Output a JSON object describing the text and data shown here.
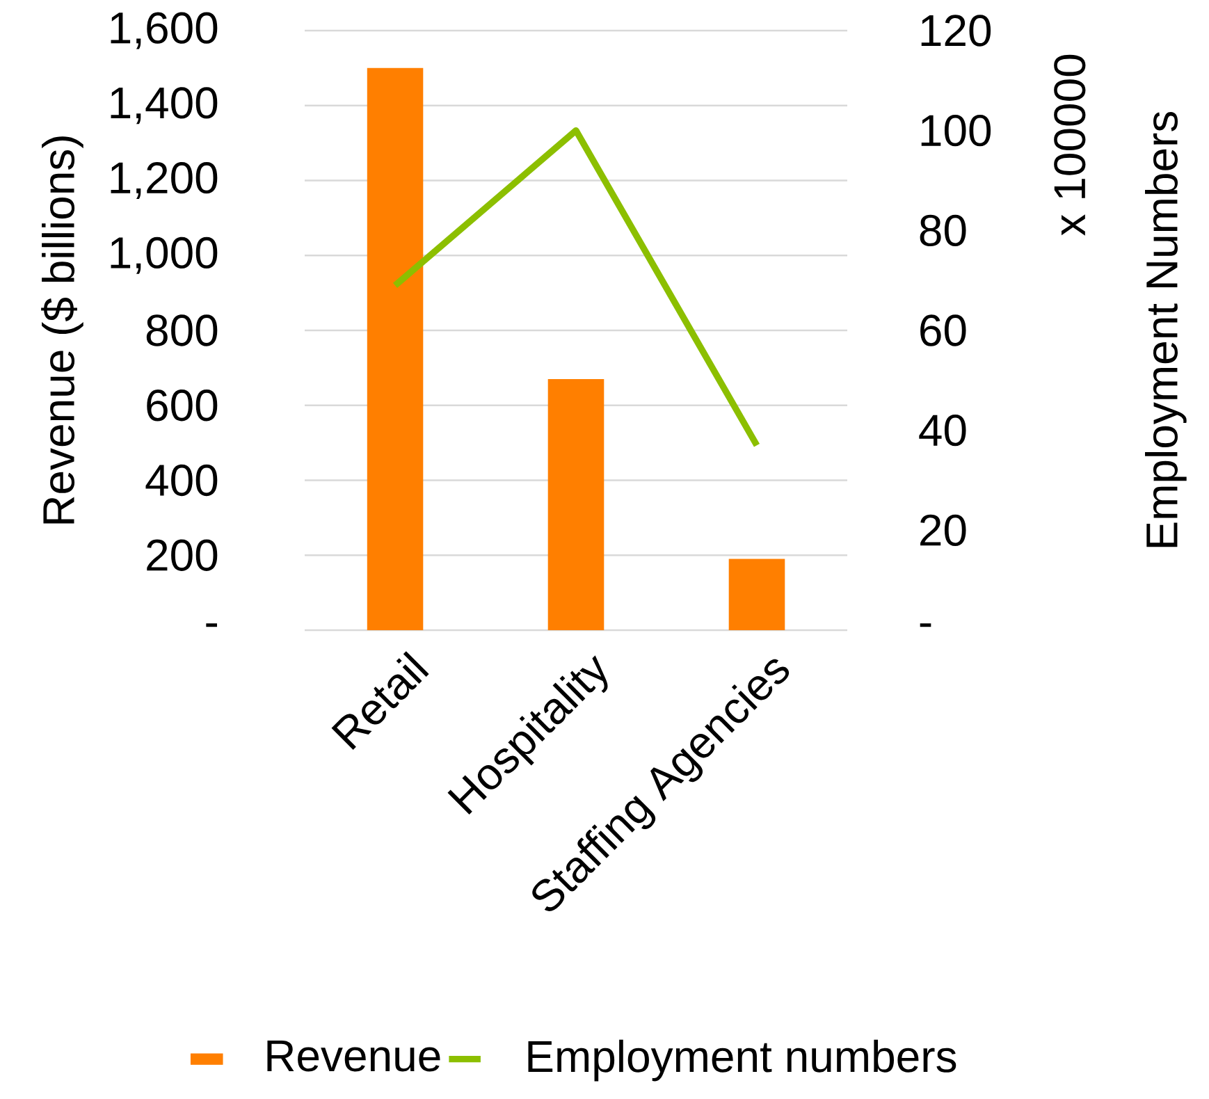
{
  "chart_data": {
    "type": "bar",
    "categories": [
      "Retail",
      "Hospitality",
      "Staffing Agencies"
    ],
    "series": [
      {
        "name": "Revenue",
        "color": "#ff7f00",
        "values": [
          1500,
          670,
          190
        ]
      },
      {
        "name": "Employment numbers",
        "type": "line",
        "axis": "y2",
        "color": "#8cbf00",
        "values": [
          69,
          100,
          37
        ]
      }
    ],
    "ylabel": "Revenue ($ billions)",
    "y2label": "Employment Numbers",
    "annotations": [
      "x 100000"
    ],
    "ylim": [
      0,
      1600
    ],
    "yticks": [
      {
        "value": 0,
        "label": "-"
      },
      {
        "value": 200,
        "label": "200"
      },
      {
        "value": 400,
        "label": "400"
      },
      {
        "value": 600,
        "label": "600"
      },
      {
        "value": 800,
        "label": "800"
      },
      {
        "value": 1000,
        "label": "1,000"
      },
      {
        "value": 1200,
        "label": "1,200"
      },
      {
        "value": 1400,
        "label": "1,400"
      },
      {
        "value": 1600,
        "label": "1,600"
      }
    ],
    "y2lim": [
      0,
      120
    ],
    "y2ticks": [
      {
        "value": 0,
        "label": "-"
      },
      20,
      40,
      60,
      80,
      100,
      120
    ],
    "grid": "y",
    "legend": "bottom",
    "marker": "none",
    "line_style": "solid"
  }
}
